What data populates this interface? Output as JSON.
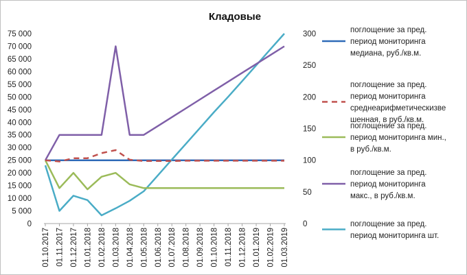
{
  "chart_data": {
    "type": "line",
    "title": "Кладовые",
    "categories": [
      "01.10.2017",
      "01.11.2017",
      "01.12.2017",
      "01.01.2018",
      "01.02.2018",
      "01.03.2018",
      "01.04.2018",
      "01.05.2018",
      "01.06.2018",
      "01.07.2018",
      "01.08.2018",
      "01.09.2018",
      "01.10.2018",
      "01.11.2018",
      "01.12.2018",
      "01.01.2019",
      "01.02.2019",
      "01.03.2019"
    ],
    "y_left": {
      "min": 0,
      "max": 75000,
      "step": 5000,
      "tick_labels": [
        "0",
        "5 000",
        "10 000",
        "15 000",
        "20 000",
        "25 000",
        "30 000",
        "35 000",
        "40 000",
        "45 000",
        "50 000",
        "55 000",
        "60 000",
        "65 000",
        "70 000",
        "75 000"
      ]
    },
    "y_right": {
      "min": 0,
      "max": 300,
      "step": 50,
      "tick_labels": [
        "0",
        "50",
        "100",
        "150",
        "200",
        "250",
        "300"
      ]
    },
    "grid": false,
    "legend_position": "right",
    "series": [
      {
        "name": "поглощение за пред. период мониторинга медиана, руб./кв.м.",
        "legend_lines": [
          "поглощение за пред.",
          "период мониторинга",
          "медиана, руб./кв.м."
        ],
        "axis": "left",
        "color": "#2e6ab8",
        "dash": "solid",
        "values": [
          25000,
          25000,
          25000,
          25000,
          25000,
          25000,
          25000,
          25000,
          25000,
          25000,
          25000,
          25000,
          25000,
          25000,
          25000,
          25000,
          25000,
          25000
        ]
      },
      {
        "name": "поглощение за пред. период мониторинга среднеарифметическизве шенная, в руб./кв.м.",
        "legend_lines": [
          "поглощение за пред.",
          "период мониторинга",
          "среднеарифметическизве",
          "шенная, в руб./кв.м."
        ],
        "axis": "left",
        "color": "#c0504d",
        "dash": "dashed",
        "values": [
          25000,
          24500,
          25800,
          25800,
          27800,
          29000,
          25200,
          24700,
          24700,
          24700,
          24800,
          24800,
          24800,
          24800,
          24800,
          24800,
          24800,
          24800
        ]
      },
      {
        "name": "поглощение за пред. период мониторинга мин., в руб./кв.м.",
        "legend_lines": [
          "поглощение за пред.",
          "период мониторинга мин.,",
          "в руб./кв.м."
        ],
        "axis": "left",
        "color": "#9bbb59",
        "dash": "solid",
        "values": [
          25000,
          14000,
          20000,
          13500,
          18500,
          20000,
          15500,
          14000,
          14000,
          14000,
          14000,
          14000,
          14000,
          14000,
          14000,
          14000,
          14000,
          14000
        ]
      },
      {
        "name": "поглощение за пред. период мониторинга макс., в руб./кв.м.",
        "legend_lines": [
          "поглощение за пред.",
          "период мониторинга",
          "макс., в руб./кв.м."
        ],
        "axis": "left",
        "color": "#7f5fa8",
        "dash": "solid",
        "values": [
          25000,
          35000,
          35000,
          35000,
          35000,
          70000,
          35000,
          35000,
          38500,
          42000,
          45500,
          49000,
          52500,
          56000,
          59500,
          63000,
          66500,
          70000
        ]
      },
      {
        "name": "поглощение за пред. период мониторинга шт.",
        "legend_lines": [
          "поглощение за пред.",
          "период мониторинга шт."
        ],
        "axis": "right",
        "color": "#4aacc6",
        "dash": "solid",
        "values": [
          92,
          20,
          44,
          37,
          13,
          24,
          36,
          51,
          76,
          101,
          126,
          151,
          176,
          200,
          225,
          250,
          275,
          300
        ]
      }
    ]
  }
}
